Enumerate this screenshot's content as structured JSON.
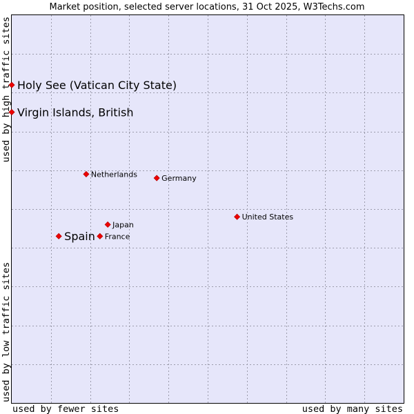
{
  "chart_data": {
    "type": "scatter",
    "title": "Market position, selected server locations, 31 Oct 2025, W3Techs.com",
    "xlabel_left": "used by fewer sites",
    "xlabel_right": "used by many sites",
    "ylabel_bottom": "used by low traffic sites",
    "ylabel_top": "used by high traffic sites",
    "xlim": [
      0,
      100
    ],
    "ylim": [
      0,
      100
    ],
    "grid": true,
    "x_gridlines": [
      10,
      20,
      30,
      40,
      50,
      60,
      70,
      80,
      90
    ],
    "y_gridlines": [
      10,
      20,
      30,
      40,
      50,
      60,
      70,
      80,
      90
    ],
    "points": [
      {
        "name": "Holy See (Vatican City State)",
        "x": 0,
        "y": 82,
        "emphasis": true
      },
      {
        "name": "Virgin Islands, British",
        "x": 0,
        "y": 75,
        "emphasis": true
      },
      {
        "name": "Netherlands",
        "x": 19,
        "y": 59,
        "emphasis": false
      },
      {
        "name": "Germany",
        "x": 37,
        "y": 58,
        "emphasis": false
      },
      {
        "name": "United States",
        "x": 57.5,
        "y": 48,
        "emphasis": false
      },
      {
        "name": "Japan",
        "x": 24.5,
        "y": 46,
        "emphasis": false
      },
      {
        "name": "Spain",
        "x": 12,
        "y": 43,
        "emphasis": true
      },
      {
        "name": "France",
        "x": 22.5,
        "y": 43,
        "emphasis": false
      }
    ]
  }
}
